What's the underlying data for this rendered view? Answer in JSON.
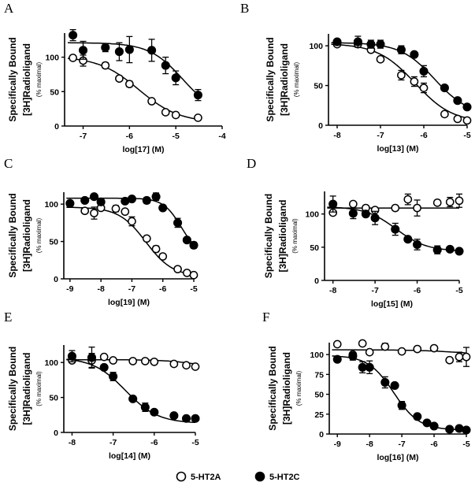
{
  "chart_data": [
    {
      "panel": "A",
      "type": "scatter",
      "xlabel": "log[17] (M)",
      "ylabel": [
        "Specifically Bound",
        "[3H]Radioligand",
        "(% maximal)"
      ],
      "xlim": [
        -7.4,
        -4
      ],
      "ylim": [
        0,
        135
      ],
      "xticks": [
        -7,
        -6,
        -5,
        -4
      ],
      "yticks": [
        0,
        50,
        100
      ],
      "series": [
        {
          "name": "5-HT2A",
          "marker": "open-circle",
          "x": [
            -7.22,
            -7,
            -6.52,
            -6.22,
            -6,
            -5.52,
            -5.22,
            -5,
            -4.52
          ],
          "y": [
            99,
            95,
            88,
            69,
            61,
            36,
            20,
            16,
            12
          ],
          "err": [
            0,
            8,
            4,
            0,
            4,
            0,
            0,
            0,
            0
          ],
          "fit": {
            "top": 101,
            "bottom": 5,
            "logIC50": -5.8,
            "hill": 1
          }
        },
        {
          "name": "5-HT2C",
          "marker": "filled-circle",
          "x": [
            -7.22,
            -7,
            -6.52,
            -6.22,
            -6,
            -5.52,
            -5.22,
            -5,
            -4.52
          ],
          "y": [
            132,
            110,
            114,
            108,
            111,
            110,
            88,
            70,
            45
          ],
          "err": [
            8,
            13,
            6,
            13,
            19,
            16,
            12,
            10,
            8
          ],
          "fit": {
            "top": 121,
            "bottom": 15,
            "logIC50": -4.85,
            "hill": 1.2
          }
        }
      ]
    },
    {
      "panel": "B",
      "type": "scatter",
      "xlabel": "log[13] (M)",
      "ylabel": [
        "Specifically Bound",
        "[3H]Radioligand",
        "(% maximal)"
      ],
      "xlim": [
        -8.2,
        -5
      ],
      "ylim": [
        0,
        115
      ],
      "xticks": [
        -8,
        -7,
        -6,
        -5
      ],
      "yticks": [
        0,
        50,
        100
      ],
      "series": [
        {
          "name": "5-HT2A",
          "marker": "open-circle",
          "x": [
            -8,
            -7.52,
            -7.22,
            -7,
            -6.52,
            -6.22,
            -6,
            -5.52,
            -5.22,
            -5
          ],
          "y": [
            102,
            102,
            95,
            83,
            63,
            55,
            47,
            14,
            8,
            6
          ],
          "err": [
            0,
            0,
            0,
            0,
            6,
            6,
            6,
            0,
            0,
            0
          ],
          "fit": {
            "top": 103,
            "bottom": 3,
            "logIC50": -6.2,
            "hill": 1
          }
        },
        {
          "name": "5-HT2C",
          "marker": "filled-circle",
          "x": [
            -8,
            -7.52,
            -7.22,
            -7,
            -6.52,
            -6.22,
            -6,
            -5.52,
            -5.22,
            -5
          ],
          "y": [
            105,
            105,
            102,
            102,
            95,
            89,
            68,
            47,
            31,
            23
          ],
          "err": [
            2,
            7,
            5,
            5,
            5,
            0,
            7,
            0,
            0,
            0
          ],
          "fit": {
            "top": 104,
            "bottom": 12,
            "logIC50": -5.75,
            "hill": 1.1
          }
        }
      ]
    },
    {
      "panel": "C",
      "type": "scatter",
      "xlabel": "log[19] (M)",
      "ylabel": [
        "Specifically Bound",
        "[3H]Radioligand",
        "(% maximal)"
      ],
      "xlim": [
        -9.2,
        -5
      ],
      "ylim": [
        0,
        116
      ],
      "xticks": [
        -9,
        -8,
        -7,
        -6,
        -5
      ],
      "yticks": [
        0,
        50,
        100
      ],
      "series": [
        {
          "name": "5-HT2A",
          "marker": "open-circle",
          "x": [
            -9,
            -8.52,
            -8.22,
            -8,
            -7.52,
            -7.22,
            -7,
            -6.52,
            -6.22,
            -6,
            -5.52,
            -5.22,
            -5
          ],
          "y": [
            101,
            91,
            88,
            95,
            94,
            90,
            77,
            54,
            40,
            30,
            13,
            8,
            5
          ],
          "err": [
            0,
            0,
            8,
            0,
            4,
            0,
            6,
            0,
            4,
            0,
            0,
            0,
            0
          ],
          "fit": {
            "top": 96,
            "bottom": 3,
            "logIC50": -6.55,
            "hill": 1
          }
        },
        {
          "name": "5-HT2C",
          "marker": "filled-circle",
          "x": [
            -9,
            -8.52,
            -8.22,
            -8,
            -7.22,
            -7,
            -6.52,
            -6.22,
            -6,
            -5.52,
            -5.22,
            -5
          ],
          "y": [
            101,
            105,
            110,
            103,
            104,
            107,
            105,
            110,
            95,
            75,
            52,
            45
          ],
          "err": [
            0,
            0,
            0,
            0,
            0,
            0,
            4,
            5,
            0,
            6,
            0,
            4
          ],
          "fit": {
            "top": 108,
            "bottom": 30,
            "logIC50": -5.4,
            "hill": 1.5
          }
        }
      ]
    },
    {
      "panel": "D",
      "type": "scatter",
      "xlabel": "log[15] (M)",
      "ylabel": [
        "Specifically Bound",
        "[3H]Radioligand",
        "(% maximal)"
      ],
      "xlim": [
        -8.2,
        -5
      ],
      "ylim": [
        0,
        134
      ],
      "xticks": [
        -8,
        -7,
        -6,
        -5
      ],
      "yticks": [
        0,
        50,
        100
      ],
      "series": [
        {
          "name": "5-HT2A",
          "marker": "open-circle",
          "x": [
            -8,
            -7.52,
            -7.22,
            -7,
            -6.52,
            -6.22,
            -6,
            -5.52,
            -5.22,
            -5
          ],
          "y": [
            102,
            115,
            109,
            106,
            109,
            122,
            109,
            117,
            118,
            120
          ],
          "err": [
            0,
            0,
            0,
            0,
            0,
            8,
            12,
            0,
            7,
            10
          ],
          "fit": {
            "top": 109,
            "bottom": 109,
            "logIC50": -6,
            "hill": 1
          }
        },
        {
          "name": "5-HT2C",
          "marker": "filled-circle",
          "x": [
            -8,
            -7.52,
            -7.22,
            -7,
            -6.52,
            -6.22,
            -6,
            -5.52,
            -5.22,
            -5
          ],
          "y": [
            115,
            101,
            100,
            94,
            77,
            62,
            54,
            46,
            47,
            44
          ],
          "err": [
            12,
            8,
            0,
            10,
            9,
            0,
            8,
            6,
            0,
            0
          ],
          "fit": {
            "top": 111,
            "bottom": 44,
            "logIC50": -6.5,
            "hill": 1.2
          }
        }
      ]
    },
    {
      "panel": "E",
      "type": "scatter",
      "xlabel": "log[14] (M)",
      "ylabel": [
        "Specifically Bound",
        "[3H]Radioligand",
        "(% maximal)"
      ],
      "xlim": [
        -8.2,
        -5
      ],
      "ylim": [
        0,
        125
      ],
      "xticks": [
        -8,
        -7,
        -6,
        -5
      ],
      "yticks": [
        0,
        50,
        100
      ],
      "series": [
        {
          "name": "5-HT2A",
          "marker": "open-circle",
          "x": [
            -8,
            -7.52,
            -7.22,
            -7,
            -6.52,
            -6.22,
            -6,
            -5.52,
            -5.22,
            -5
          ],
          "y": [
            103,
            103,
            108,
            103,
            102,
            102,
            101,
            98,
            96,
            94
          ],
          "err": [
            0,
            10,
            0,
            0,
            0,
            0,
            0,
            0,
            0,
            0
          ],
          "fit": {
            "top": 104,
            "bottom": 88,
            "logIC50": -4.8,
            "hill": 1
          }
        },
        {
          "name": "5-HT2C",
          "marker": "filled-circle",
          "x": [
            -8,
            -7.52,
            -7.22,
            -7,
            -6.52,
            -6.22,
            -6,
            -5.52,
            -5.22,
            -5
          ],
          "y": [
            109,
            107,
            93,
            80,
            48,
            36,
            29,
            24,
            20,
            20
          ],
          "err": [
            8,
            15,
            0,
            6,
            0,
            6,
            0,
            0,
            0,
            0
          ],
          "fit": {
            "top": 107,
            "bottom": 13,
            "logIC50": -6.7,
            "hill": 1.1
          }
        }
      ]
    },
    {
      "panel": "F",
      "type": "scatter",
      "xlabel": "log[16] (M)",
      "ylabel": [
        "Specifically Bound",
        "[3H]Radioligand",
        "(% maximal)"
      ],
      "xlim": [
        -9.25,
        -5
      ],
      "ylim": [
        0,
        115
      ],
      "xticks": [
        -9,
        -8,
        -7,
        -6,
        -5
      ],
      "yticks": [
        0,
        25,
        50,
        75,
        100
      ],
      "series": [
        {
          "name": "5-HT2A",
          "marker": "open-circle",
          "x": [
            -9,
            -8.52,
            -8.22,
            -8,
            -7.52,
            -7,
            -6.52,
            -6,
            -5.52,
            -5.22,
            -5
          ],
          "y": [
            113,
            100,
            114,
            103,
            110,
            104,
            107,
            108,
            93,
            97,
            97
          ],
          "err": [
            0,
            0,
            0,
            0,
            4,
            0,
            0,
            0,
            0,
            6,
            12
          ],
          "fit": {
            "top": 106,
            "bottom": 98,
            "logIC50": -5,
            "hill": 0.6
          }
        },
        {
          "name": "5-HT2C",
          "marker": "filled-circle",
          "x": [
            -9,
            -8.52,
            -8.22,
            -8,
            -7.52,
            -7.22,
            -7,
            -6.52,
            -6.22,
            -6,
            -5.52,
            -5.22,
            -5
          ],
          "y": [
            94,
            98,
            84,
            84,
            65,
            61,
            36,
            22,
            14,
            10,
            6,
            7,
            5
          ],
          "err": [
            0,
            5,
            7,
            8,
            7,
            0,
            5,
            0,
            0,
            0,
            0,
            0,
            0
          ],
          "fit": {
            "top": 99,
            "bottom": 5,
            "logIC50": -7.25,
            "hill": 1.1
          }
        }
      ]
    }
  ],
  "legend": {
    "placement": "bottom-center",
    "entries": [
      {
        "label": "5-HT2A",
        "marker": "open-circle"
      },
      {
        "label": "5-HT2C",
        "marker": "filled-circle"
      }
    ]
  }
}
